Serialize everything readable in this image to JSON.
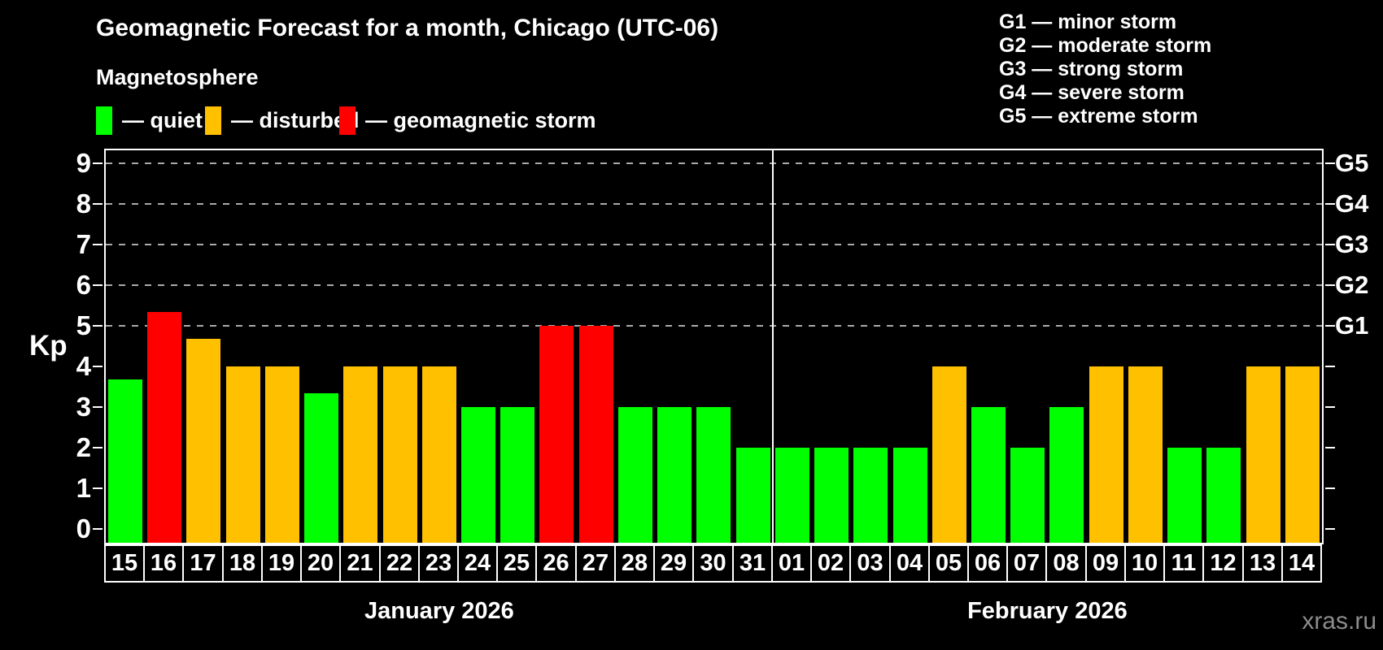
{
  "title": "Geomagnetic Forecast for a month, Chicago (UTC-06)",
  "subtitle": "Magnetosphere",
  "watermark": "xras.ru",
  "legend": {
    "items": [
      {
        "label": "— quiet",
        "status": "quiet"
      },
      {
        "label": "— disturbed",
        "status": "disturbed"
      },
      {
        "label": "— geomagnetic storm",
        "status": "storm"
      }
    ]
  },
  "g_scale_legend": [
    "G1 — minor storm",
    "G2 — moderate storm",
    "G3 — strong storm",
    "G4 — severe storm",
    "G5 — extreme storm"
  ],
  "chart_data": {
    "type": "bar",
    "ylabel": "Kp",
    "ylim": [
      0,
      9
    ],
    "yticks": [
      0,
      1,
      2,
      3,
      4,
      5,
      6,
      7,
      8,
      9
    ],
    "gridlines_at": [
      5,
      6,
      7,
      8,
      9
    ],
    "grid": "dashed horizontal at storm levels only",
    "legend_position": "top",
    "right_axis": [
      {
        "kp": 5,
        "label": "G1"
      },
      {
        "kp": 6,
        "label": "G2"
      },
      {
        "kp": 7,
        "label": "G3"
      },
      {
        "kp": 8,
        "label": "G4"
      },
      {
        "kp": 9,
        "label": "G5"
      }
    ],
    "colors": {
      "quiet": "#00ff00",
      "disturbed": "#ffc000",
      "storm": "#ff0000"
    },
    "months": [
      {
        "label": "January 2026",
        "start_index": 0,
        "count": 17
      },
      {
        "label": "February 2026",
        "start_index": 17,
        "count": 14
      }
    ],
    "bars": [
      {
        "day": "15",
        "kp": 3.67,
        "status": "quiet"
      },
      {
        "day": "16",
        "kp": 5.33,
        "status": "storm"
      },
      {
        "day": "17",
        "kp": 4.67,
        "status": "disturbed"
      },
      {
        "day": "18",
        "kp": 4,
        "status": "disturbed"
      },
      {
        "day": "19",
        "kp": 4,
        "status": "disturbed"
      },
      {
        "day": "20",
        "kp": 3.33,
        "status": "quiet"
      },
      {
        "day": "21",
        "kp": 4,
        "status": "disturbed"
      },
      {
        "day": "22",
        "kp": 4,
        "status": "disturbed"
      },
      {
        "day": "23",
        "kp": 4,
        "status": "disturbed"
      },
      {
        "day": "24",
        "kp": 3,
        "status": "quiet"
      },
      {
        "day": "25",
        "kp": 3,
        "status": "quiet"
      },
      {
        "day": "26",
        "kp": 5,
        "status": "storm"
      },
      {
        "day": "27",
        "kp": 5,
        "status": "storm"
      },
      {
        "day": "28",
        "kp": 3,
        "status": "quiet"
      },
      {
        "day": "29",
        "kp": 3,
        "status": "quiet"
      },
      {
        "day": "30",
        "kp": 3,
        "status": "quiet"
      },
      {
        "day": "31",
        "kp": 2,
        "status": "quiet"
      },
      {
        "day": "01",
        "kp": 2,
        "status": "quiet"
      },
      {
        "day": "02",
        "kp": 2,
        "status": "quiet"
      },
      {
        "day": "03",
        "kp": 2,
        "status": "quiet"
      },
      {
        "day": "04",
        "kp": 2,
        "status": "quiet"
      },
      {
        "day": "05",
        "kp": 4,
        "status": "disturbed"
      },
      {
        "day": "06",
        "kp": 3,
        "status": "quiet"
      },
      {
        "day": "07",
        "kp": 2,
        "status": "quiet"
      },
      {
        "day": "08",
        "kp": 3,
        "status": "quiet"
      },
      {
        "day": "09",
        "kp": 4,
        "status": "disturbed"
      },
      {
        "day": "10",
        "kp": 4,
        "status": "disturbed"
      },
      {
        "day": "11",
        "kp": 2,
        "status": "quiet"
      },
      {
        "day": "12",
        "kp": 2,
        "status": "quiet"
      },
      {
        "day": "13",
        "kp": 4,
        "status": "disturbed"
      },
      {
        "day": "14",
        "kp": 4,
        "status": "disturbed"
      }
    ]
  }
}
